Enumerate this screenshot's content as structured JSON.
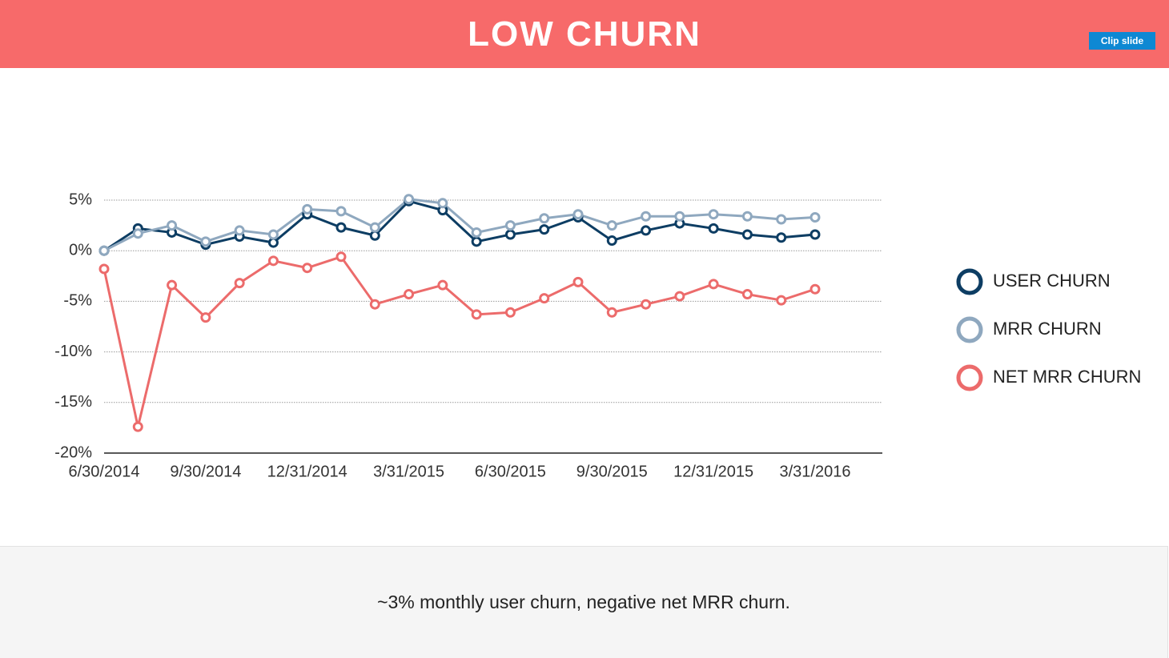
{
  "header": {
    "title": "LOW CHURN",
    "button": "Clip slide"
  },
  "chart_data": {
    "type": "line",
    "categories": [
      "6/30/2014",
      null,
      null,
      "9/30/2014",
      null,
      null,
      "12/31/2014",
      null,
      null,
      "3/31/2015",
      null,
      null,
      "6/30/2015",
      null,
      null,
      "9/30/2015",
      null,
      null,
      "12/31/2015",
      null,
      null,
      "3/31/2016"
    ],
    "series": [
      {
        "name": "USER CHURN",
        "color": "#0d3d63",
        "values": [
          0,
          2.2,
          1.8,
          0.6,
          1.4,
          0.8,
          3.6,
          2.3,
          1.5,
          4.9,
          4.0,
          0.9,
          1.6,
          2.1,
          3.3,
          1.0,
          2.0,
          2.7,
          2.2,
          1.6,
          1.3,
          1.6
        ]
      },
      {
        "name": "MRR CHURN",
        "color": "#8fa8bf",
        "values": [
          0,
          1.7,
          2.5,
          0.9,
          2.0,
          1.6,
          4.1,
          3.9,
          2.3,
          5.1,
          4.7,
          1.8,
          2.5,
          3.2,
          3.6,
          2.5,
          3.4,
          3.4,
          3.6,
          3.4,
          3.1,
          3.3
        ]
      },
      {
        "name": "NET MRR CHURN",
        "color": "#ec6b6b",
        "values": [
          -1.8,
          -17.4,
          -3.4,
          -6.6,
          -3.2,
          -1.0,
          -1.7,
          -0.6,
          -5.3,
          -4.3,
          -3.4,
          -6.3,
          -6.1,
          -4.7,
          -3.1,
          -6.1,
          -5.3,
          -4.5,
          -3.3,
          -4.3,
          -4.9,
          -3.8
        ]
      }
    ],
    "ylim": [
      -20,
      5
    ],
    "yticks": [
      {
        "value": 5,
        "label": "5%"
      },
      {
        "value": 0,
        "label": "0%"
      },
      {
        "value": -5,
        "label": "-5%"
      },
      {
        "value": -10,
        "label": "-10%"
      },
      {
        "value": -15,
        "label": "-15%"
      },
      {
        "value": -20,
        "label": "-20%"
      }
    ],
    "grid": true,
    "legend": "right"
  },
  "caption": "~3% monthly user churn, negative net MRR churn."
}
